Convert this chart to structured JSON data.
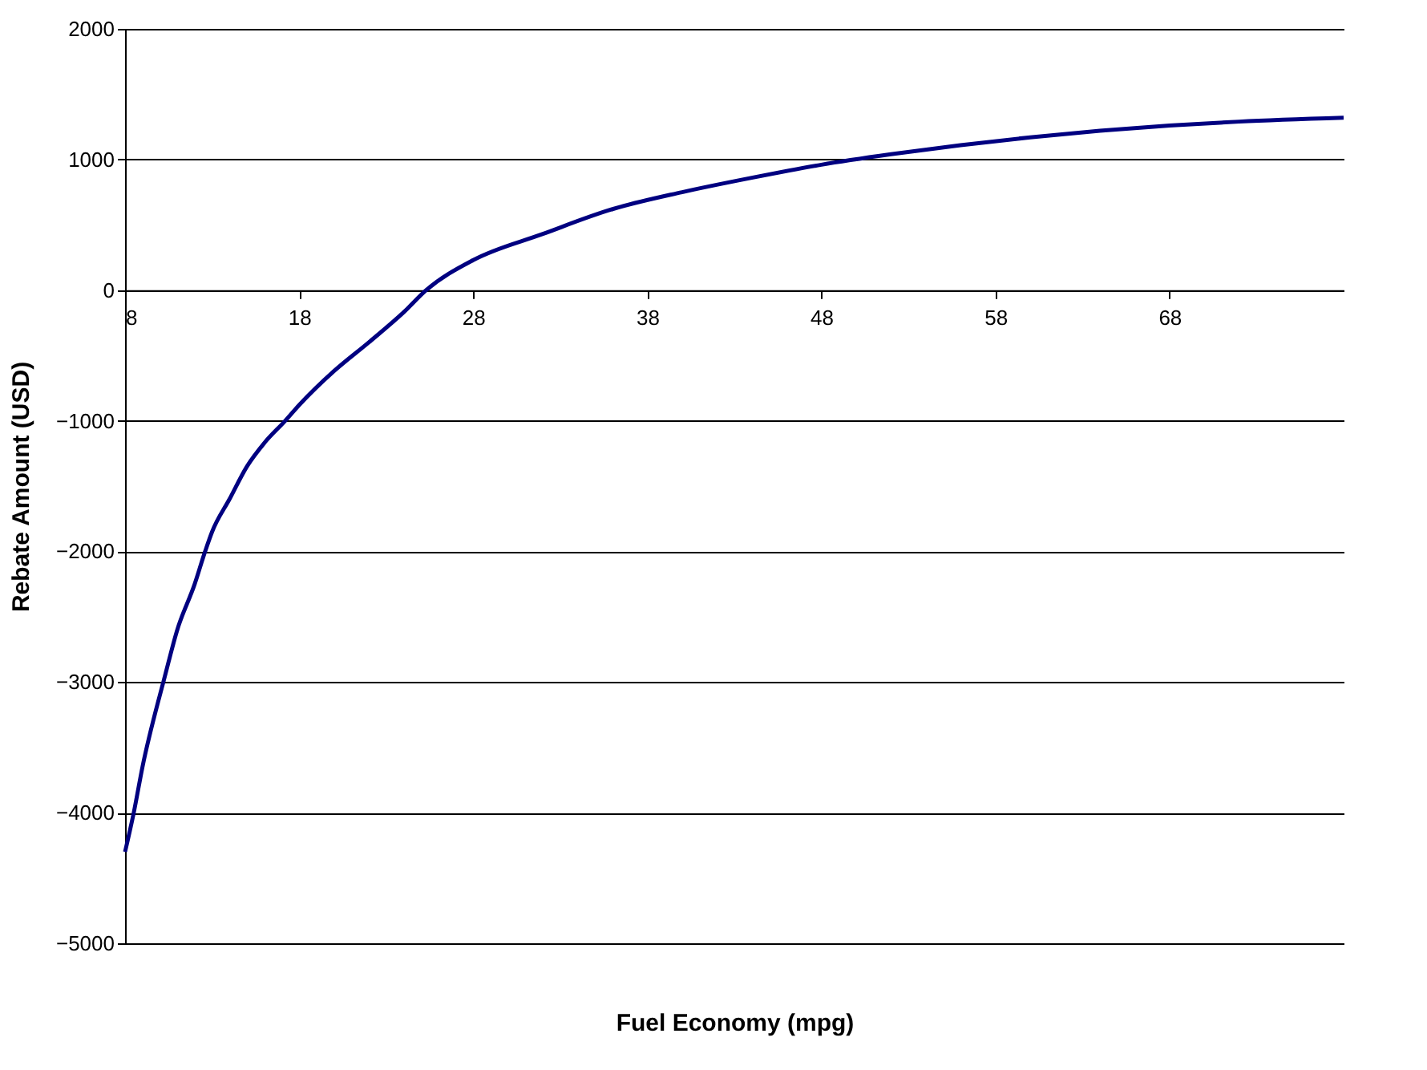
{
  "chart_data": {
    "type": "line",
    "xlabel": "Fuel Economy (mpg)",
    "ylabel": "Rebate Amount (USD)",
    "x": [
      8,
      8.5,
      9,
      10,
      10.2,
      11,
      12,
      12.6,
      13,
      14,
      15,
      16,
      17.2,
      18,
      20,
      22,
      24,
      25.3,
      28,
      32,
      36,
      40,
      44,
      48,
      52,
      56,
      60,
      64,
      68,
      72,
      78
    ],
    "series": [
      {
        "color": "#000080",
        "values": [
          -4300,
          -4000,
          -3650,
          -3100,
          -3000,
          -2600,
          -2250,
          -2000,
          -1850,
          -1600,
          -1350,
          -1170,
          -1000,
          -880,
          -620,
          -400,
          -170,
          0,
          230,
          430,
          620,
          750,
          860,
          960,
          1040,
          1110,
          1170,
          1220,
          1260,
          1290,
          1320
        ]
      }
    ],
    "xlim": [
      8,
      78
    ],
    "xticks": [
      8,
      18,
      28,
      38,
      48,
      58,
      68
    ],
    "ylim": [
      -5000,
      2000
    ],
    "yticks": [
      -5000,
      -4000,
      -3000,
      -2000,
      -1000,
      0,
      1000,
      2000
    ],
    "grid": "y",
    "marker": "none",
    "line_style": "solid"
  }
}
